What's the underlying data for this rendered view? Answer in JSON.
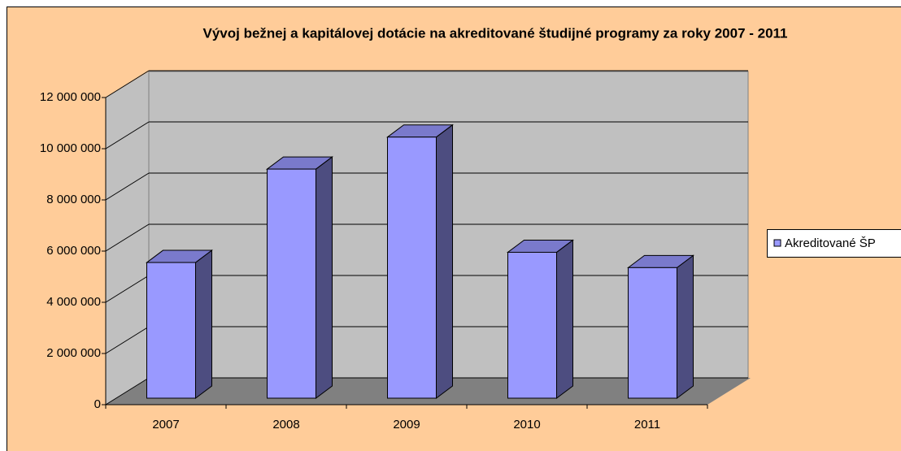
{
  "chart_data": {
    "type": "bar3d",
    "title": "Vývoj  bežnej a  kapitálovej dotácie na akreditované študijné programy za roky 2007 - 2011",
    "categories": [
      "2007",
      "2008",
      "2009",
      "2010",
      "2011"
    ],
    "series": [
      {
        "name": "Akreditované ŠP",
        "color": "#9999FF",
        "values": [
          5300000,
          8950000,
          10200000,
          5700000,
          5100000
        ]
      }
    ],
    "ylim": [
      0,
      12000000
    ],
    "yticks": [
      {
        "value": 0,
        "label": "0"
      },
      {
        "value": 2000000,
        "label": "2 000 000"
      },
      {
        "value": 4000000,
        "label": "4 000 000"
      },
      {
        "value": 6000000,
        "label": "6 000 000"
      },
      {
        "value": 8000000,
        "label": "8 000 000"
      },
      {
        "value": 10000000,
        "label": "10 000 000"
      },
      {
        "value": 12000000,
        "label": "12 000 000"
      }
    ],
    "grid": true,
    "legend": "right"
  }
}
